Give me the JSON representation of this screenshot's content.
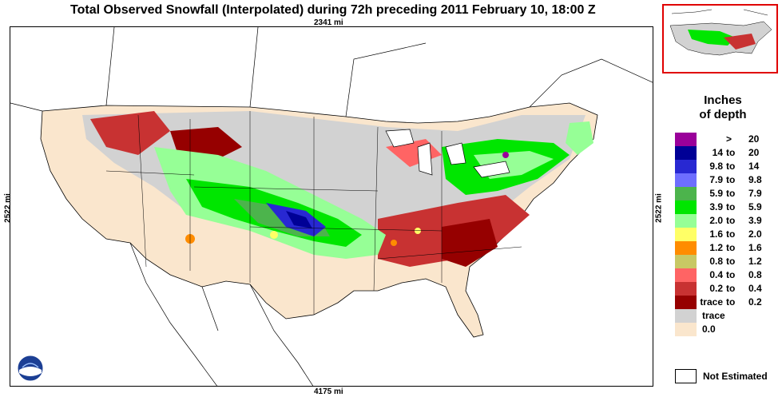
{
  "title": "Total Observed Snowfall (Interpolated) during 72h preceding 2011 February 10, 18:00 Z",
  "dimensions": {
    "top": "2341 mi",
    "bottom": "4175 mi",
    "left": "2522 mi",
    "right": "2522 mi"
  },
  "legend": {
    "title_line1": "Inches",
    "title_line2": "of depth",
    "entries": [
      {
        "lo": "",
        "to": ">",
        "hi": "20",
        "color": "#9a009a"
      },
      {
        "lo": "14",
        "to": "to",
        "hi": "20",
        "color": "#000096"
      },
      {
        "lo": "9.8",
        "to": "to",
        "hi": "14",
        "color": "#2828d2"
      },
      {
        "lo": "7.9",
        "to": "to",
        "hi": "9.8",
        "color": "#6e6eff"
      },
      {
        "lo": "5.9",
        "to": "to",
        "hi": "7.9",
        "color": "#4cb44c"
      },
      {
        "lo": "3.9",
        "to": "to",
        "hi": "5.9",
        "color": "#00e600"
      },
      {
        "lo": "2.0",
        "to": "to",
        "hi": "3.9",
        "color": "#96ff96"
      },
      {
        "lo": "1.6",
        "to": "to",
        "hi": "2.0",
        "color": "#ffff66"
      },
      {
        "lo": "1.2",
        "to": "to",
        "hi": "1.6",
        "color": "#ff8c00"
      },
      {
        "lo": "0.8",
        "to": "to",
        "hi": "1.2",
        "color": "#c8c864"
      },
      {
        "lo": "0.4",
        "to": "to",
        "hi": "0.8",
        "color": "#ff6464"
      },
      {
        "lo": "0.2",
        "to": "to",
        "hi": "0.4",
        "color": "#c83232"
      },
      {
        "lo": "trace",
        "to": "to",
        "hi": "0.2",
        "color": "#960000"
      },
      {
        "lo": "trace",
        "to": "",
        "hi": "",
        "color": "#d2d2d2",
        "single": true
      },
      {
        "lo": "0.0",
        "to": "",
        "hi": "",
        "color": "#fae6cd",
        "single": true
      }
    ],
    "not_estimated": "Not Estimated"
  }
}
